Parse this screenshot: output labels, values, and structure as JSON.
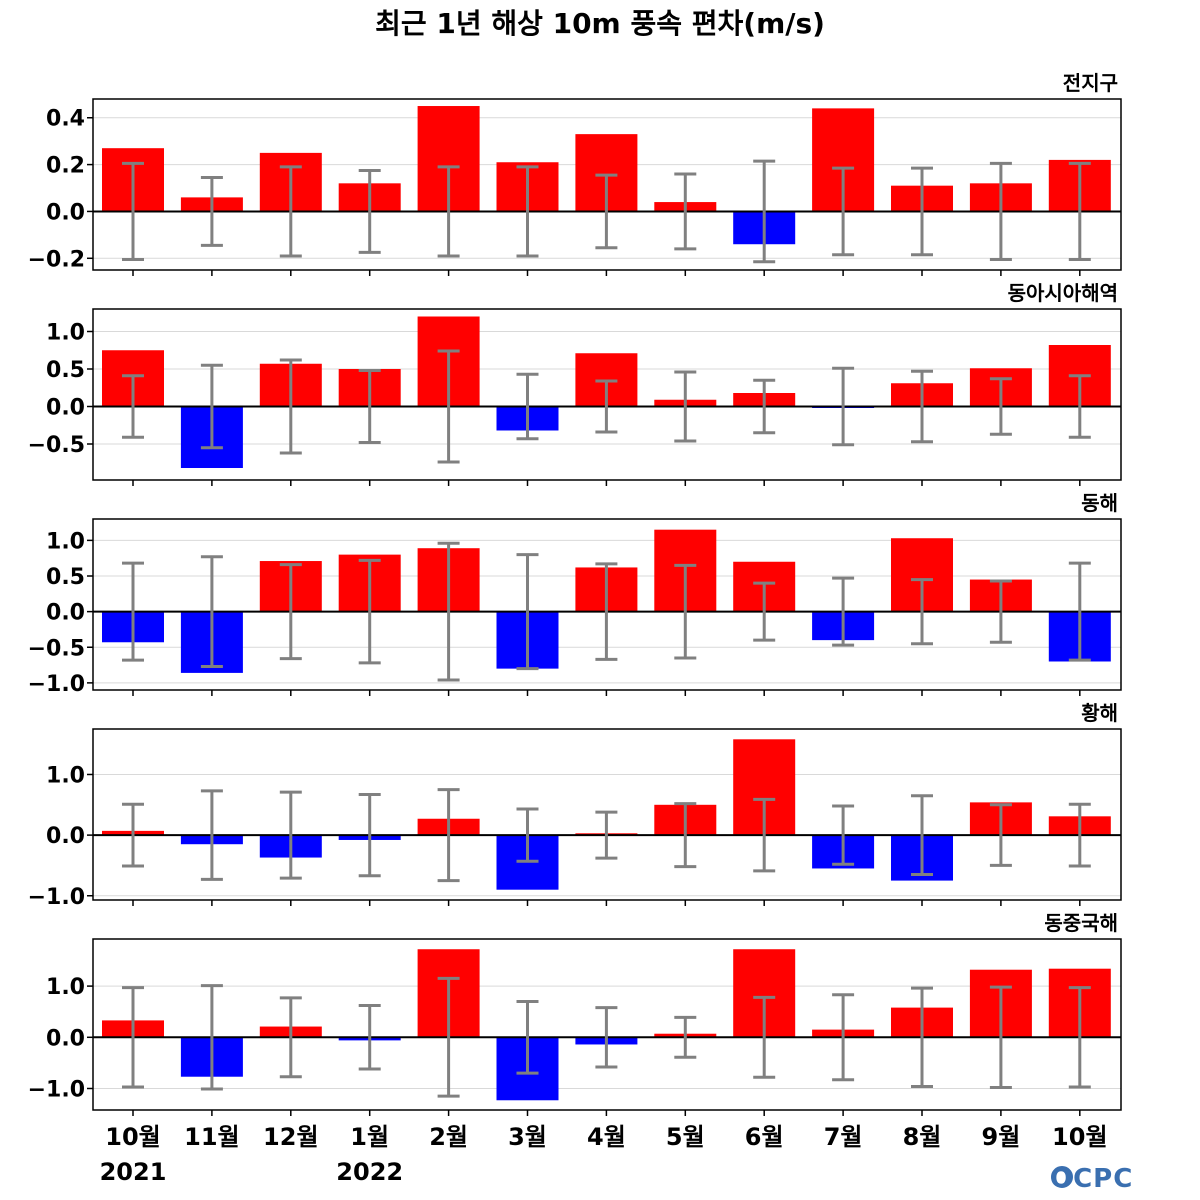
{
  "title": "최근 1년 해상 10m 풍속 편차(m/s)",
  "logo_text": "OCPC",
  "colors": {
    "positive": "#ff0000",
    "negative": "#0000ff",
    "error_bar": "#808080",
    "zero_line": "#000000",
    "grid": "#d9d9d9",
    "logo": "#3a6fb0"
  },
  "chart_data": {
    "type": "bar",
    "categories": [
      "10월",
      "11월",
      "12월",
      "1월",
      "2월",
      "3월",
      "4월",
      "5월",
      "6월",
      "7월",
      "8월",
      "9월",
      "10월"
    ],
    "year_labels": [
      {
        "category_index": 0,
        "label": "2021"
      },
      {
        "category_index": 3,
        "label": "2022"
      }
    ],
    "xlabel": "",
    "ylabel": "",
    "grid": true,
    "panels": [
      {
        "title": "전지구",
        "ylim": [
          -0.25,
          0.48
        ],
        "yticks": [
          -0.2,
          0.0,
          0.2,
          0.4
        ],
        "ytick_labels": [
          "−0.2",
          "0.0",
          "0.2",
          "0.4"
        ],
        "values": [
          0.27,
          0.06,
          0.25,
          0.12,
          0.45,
          0.21,
          0.33,
          0.04,
          -0.14,
          0.44,
          0.11,
          0.12,
          0.22
        ],
        "error": [
          0.205,
          0.145,
          0.19,
          0.175,
          0.19,
          0.19,
          0.155,
          0.16,
          0.215,
          0.185,
          0.185,
          0.205,
          0.205
        ]
      },
      {
        "title": "동아시아해역",
        "ylim": [
          -0.98,
          1.3
        ],
        "yticks": [
          -0.5,
          0.0,
          0.5,
          1.0
        ],
        "ytick_labels": [
          "−0.5",
          "0.0",
          "0.5",
          "1.0"
        ],
        "values": [
          0.75,
          -0.82,
          0.57,
          0.5,
          1.2,
          -0.32,
          0.71,
          0.09,
          0.18,
          -0.01,
          0.31,
          0.51,
          0.82
        ],
        "error": [
          0.41,
          0.55,
          0.62,
          0.48,
          0.74,
          0.43,
          0.34,
          0.46,
          0.35,
          0.51,
          0.47,
          0.37,
          0.41
        ]
      },
      {
        "title": "동해",
        "ylim": [
          -1.1,
          1.3
        ],
        "yticks": [
          -1.0,
          -0.5,
          0.0,
          0.5,
          1.0
        ],
        "ytick_labels": [
          "−1.0",
          "−0.5",
          "0.0",
          "0.5",
          "1.0"
        ],
        "values": [
          -0.43,
          -0.86,
          0.71,
          0.8,
          0.89,
          -0.8,
          0.62,
          1.15,
          0.7,
          -0.4,
          1.03,
          0.45,
          -0.7
        ],
        "error": [
          0.68,
          0.77,
          0.66,
          0.72,
          0.96,
          0.8,
          0.67,
          0.65,
          0.4,
          0.47,
          0.45,
          0.43,
          0.68
        ]
      },
      {
        "title": "황해",
        "ylim": [
          -1.07,
          1.75
        ],
        "yticks": [
          -1.0,
          0.0,
          1.0
        ],
        "ytick_labels": [
          "−1.0",
          "0.0",
          "1.0"
        ],
        "values": [
          0.07,
          -0.15,
          -0.37,
          -0.08,
          0.27,
          -0.9,
          0.03,
          0.5,
          1.58,
          -0.55,
          -0.75,
          0.54,
          0.31
        ],
        "error": [
          0.51,
          0.73,
          0.71,
          0.67,
          0.75,
          0.43,
          0.38,
          0.52,
          0.59,
          0.48,
          0.65,
          0.5,
          0.51
        ]
      },
      {
        "title": "동중국해",
        "ylim": [
          -1.42,
          1.92
        ],
        "yticks": [
          -1.0,
          0.0,
          1.0
        ],
        "ytick_labels": [
          "−1.0",
          "0.0",
          "1.0"
        ],
        "values": [
          0.33,
          -0.77,
          0.21,
          -0.06,
          1.72,
          -1.23,
          -0.14,
          0.07,
          1.72,
          0.15,
          0.58,
          1.32,
          1.34
        ],
        "error": [
          0.97,
          1.01,
          0.77,
          0.62,
          1.15,
          0.7,
          0.58,
          0.39,
          0.78,
          0.83,
          0.96,
          0.98,
          0.97
        ]
      }
    ]
  }
}
